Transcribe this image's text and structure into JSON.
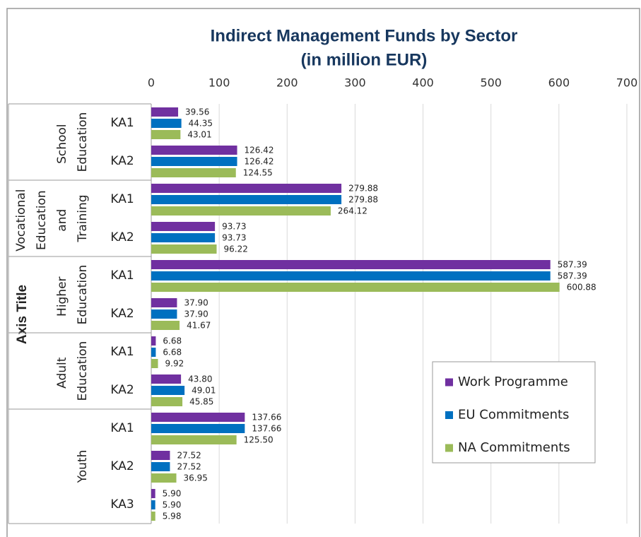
{
  "chart_data": {
    "type": "bar",
    "orientation": "horizontal",
    "title": "Indirect Management Funds by Sector",
    "subtitle": "(in million EUR)",
    "y_axis_title": "Axis Title",
    "groups": [
      {
        "name": "School Education",
        "categories": [
          "KA1",
          "KA2"
        ]
      },
      {
        "name": "Vocational Education and Training",
        "categories": [
          "KA1",
          "KA2"
        ]
      },
      {
        "name": "Higher Education",
        "categories": [
          "KA1",
          "KA2"
        ]
      },
      {
        "name": "Adult Education",
        "categories": [
          "KA1",
          "KA2"
        ]
      },
      {
        "name": "Youth",
        "categories": [
          "KA1",
          "KA2",
          "KA3"
        ]
      }
    ],
    "series": [
      {
        "name": "Work Programme",
        "color": "#7030a0",
        "values": [
          39.56,
          126.42,
          279.88,
          93.73,
          587.39,
          37.9,
          6.68,
          43.8,
          137.66,
          27.52,
          5.9
        ],
        "value_labels": [
          "39.56",
          "126.42",
          "279.88",
          "93.73",
          "587.39",
          "37.90",
          "6.68",
          "43.80",
          "137.66",
          "27.52",
          "5.90"
        ]
      },
      {
        "name": "EU Commitments",
        "color": "#0070c0",
        "values": [
          44.35,
          126.42,
          279.88,
          93.73,
          587.39,
          37.9,
          6.68,
          49.01,
          137.66,
          27.52,
          5.9
        ],
        "value_labels": [
          "44.35",
          "126.42",
          "279.88",
          "93.73",
          "587.39",
          "37.90",
          "6.68",
          "49.01",
          "137.66",
          "27.52",
          "5.90"
        ]
      },
      {
        "name": "NA Commitments",
        "color": "#9bbb59",
        "values": [
          43.01,
          124.55,
          264.12,
          96.22,
          600.88,
          41.67,
          9.92,
          45.85,
          125.5,
          36.95,
          5.98
        ],
        "value_labels": [
          "43.01",
          "124.55",
          "264.12",
          "96.22",
          "600.88",
          "41.67",
          "9.92",
          "45.85",
          "125.50",
          "36.95",
          "5.98"
        ]
      }
    ],
    "xlim": [
      0,
      700
    ],
    "xticks": [
      0,
      100,
      200,
      300,
      400,
      500,
      600,
      700
    ],
    "grid": true,
    "legend": "lower right"
  }
}
